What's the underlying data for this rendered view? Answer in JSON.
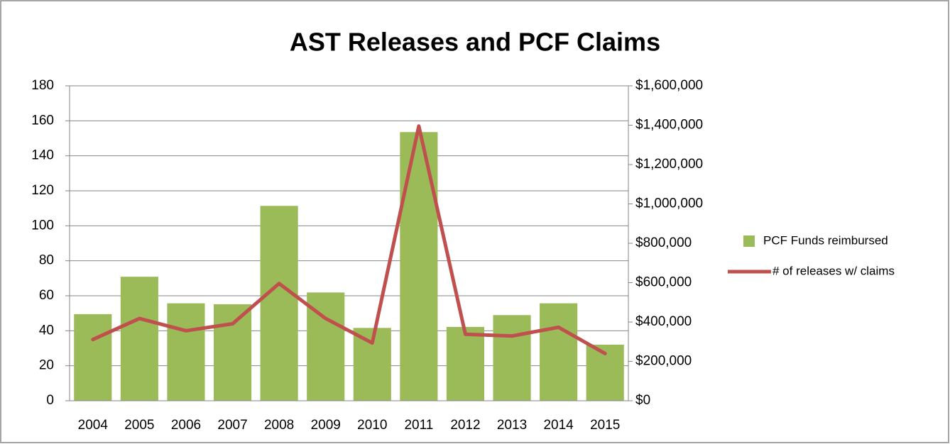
{
  "chart_data": {
    "type": "bar+line",
    "title": "AST Releases and PCF Claims",
    "categories": [
      "2004",
      "2005",
      "2006",
      "2007",
      "2008",
      "2009",
      "2010",
      "2011",
      "2012",
      "2013",
      "2014",
      "2015"
    ],
    "series": [
      {
        "name": "PCF Funds reimbursed",
        "type": "bar",
        "axis": "y2",
        "color": "#9bbb59",
        "values": [
          440000,
          630000,
          495000,
          490000,
          990000,
          550000,
          370000,
          1365000,
          375000,
          435000,
          495000,
          285000
        ]
      },
      {
        "name": "# of releases w/ claims",
        "type": "line",
        "axis": "y",
        "color": "#c0504d",
        "values": [
          35,
          47,
          40,
          44,
          67,
          47,
          33,
          157,
          38,
          37,
          42,
          27
        ]
      }
    ],
    "ylim": [
      0,
      180
    ],
    "yticks": [
      0,
      20,
      40,
      60,
      80,
      100,
      120,
      140,
      160,
      180
    ],
    "y2lim": [
      0,
      1600000
    ],
    "y2ticks": [
      {
        "value": 0,
        "label": "$0"
      },
      {
        "value": 200000,
        "label": "$200,000"
      },
      {
        "value": 400000,
        "label": "$400,000"
      },
      {
        "value": 600000,
        "label": "$600,000"
      },
      {
        "value": 800000,
        "label": "$800,000"
      },
      {
        "value": 1000000,
        "label": "$1,000,000"
      },
      {
        "value": 1200000,
        "label": "$1,200,000"
      },
      {
        "value": 1400000,
        "label": "$1,400,000"
      },
      {
        "value": 1600000,
        "label": "$1,600,000"
      }
    ],
    "grid": true,
    "legend": "right"
  }
}
